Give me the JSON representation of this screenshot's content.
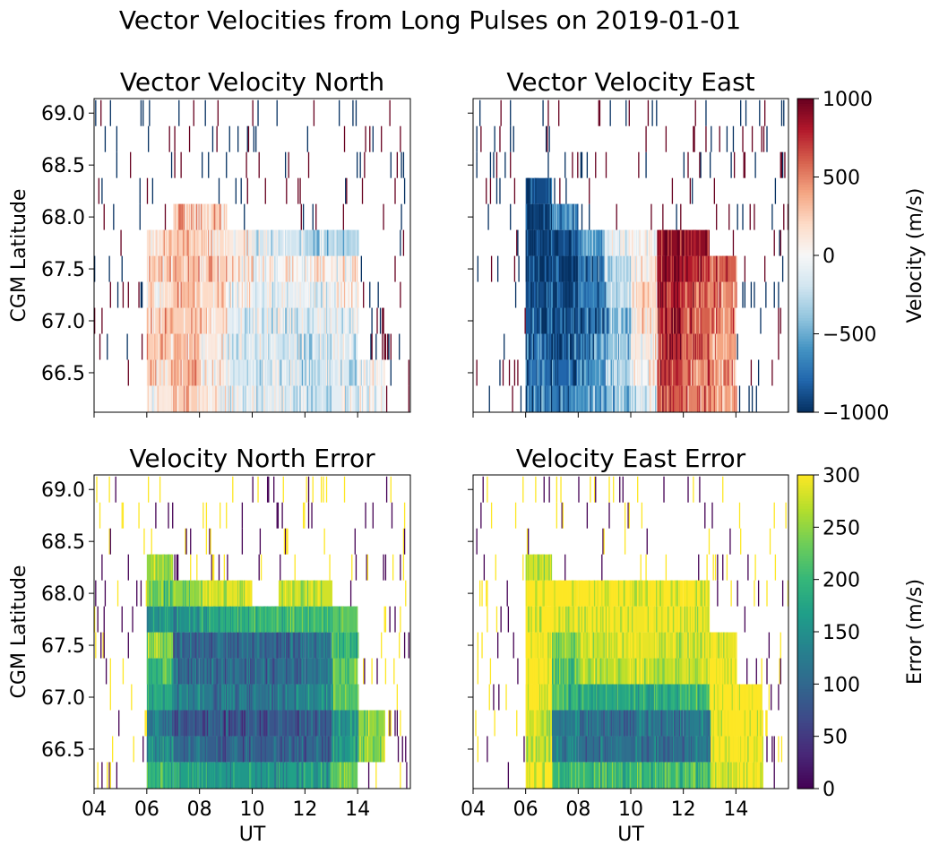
{
  "figure_title": "Vector Velocities from Long Pulses on 2019-01-01",
  "colorbars": {
    "velocity": {
      "label": "Velocity (m/s)",
      "colormap": "RdBu_r",
      "range": [
        -1000,
        1000
      ],
      "ticks": [
        1000,
        500,
        0,
        -500,
        -1000
      ],
      "tick_labels": [
        "1000",
        "500",
        "0",
        "−500",
        "−1000"
      ]
    },
    "error": {
      "label": "Error (m/s)",
      "colormap": "viridis",
      "range": [
        0,
        300
      ],
      "ticks": [
        300,
        250,
        200,
        150,
        100,
        50,
        0
      ],
      "tick_labels": [
        "300",
        "250",
        "200",
        "150",
        "100",
        "50",
        "0"
      ]
    }
  },
  "axes": {
    "ylabel": "CGM Latitude",
    "xlabel": "UT",
    "y_ticks": [
      69.0,
      68.5,
      68.0,
      67.5,
      67.0,
      66.5
    ],
    "y_tick_labels": [
      "69.0",
      "68.5",
      "68.0",
      "67.5",
      "67.0",
      "66.5"
    ],
    "x_ticks": [
      4,
      6,
      8,
      10,
      12,
      14
    ],
    "x_tick_labels": [
      "04",
      "06",
      "08",
      "10",
      "12",
      "14"
    ]
  },
  "chart_data": [
    {
      "type": "heatmap",
      "title": "Vector Velocity North",
      "xlabel": "",
      "ylabel": "CGM Latitude",
      "xlim": [
        4.0,
        16.0
      ],
      "ylim": [
        66.12,
        69.14
      ],
      "colormap": "RdBu_r",
      "clim": [
        -1000,
        1000
      ],
      "latitude_bands": [
        66.25,
        66.5,
        66.75,
        67.0,
        67.25,
        67.5,
        67.75,
        68.0,
        68.25,
        68.5,
        68.75,
        69.0
      ],
      "ut_hours": [
        4,
        5,
        6,
        7,
        8,
        9,
        10,
        11,
        12,
        13,
        14,
        15
      ],
      "values_by_band": [
        [
          null,
          null,
          100,
          250,
          100,
          -100,
          -150,
          -150,
          -200,
          -100,
          0,
          null
        ],
        [
          null,
          null,
          200,
          300,
          50,
          -150,
          -200,
          -200,
          -200,
          -150,
          0,
          null
        ],
        [
          null,
          null,
          250,
          300,
          100,
          -150,
          -150,
          -200,
          -200,
          -150,
          null,
          null
        ],
        [
          null,
          null,
          250,
          250,
          150,
          -100,
          -150,
          -150,
          -100,
          -100,
          null,
          null
        ],
        [
          null,
          null,
          200,
          300,
          200,
          0,
          -100,
          -100,
          -100,
          0,
          null,
          null
        ],
        [
          null,
          null,
          200,
          300,
          250,
          100,
          0,
          0,
          0,
          50,
          null,
          null
        ],
        [
          null,
          null,
          150,
          250,
          200,
          100,
          -200,
          -200,
          -300,
          -300,
          null,
          null
        ],
        [
          null,
          null,
          null,
          300,
          250,
          null,
          null,
          null,
          null,
          null,
          null,
          null
        ],
        [
          null,
          null,
          null,
          null,
          null,
          null,
          null,
          null,
          null,
          null,
          null,
          null
        ],
        [
          null,
          null,
          null,
          null,
          null,
          null,
          null,
          null,
          null,
          null,
          null,
          null
        ],
        [
          null,
          null,
          null,
          null,
          null,
          null,
          null,
          null,
          null,
          null,
          null,
          null
        ],
        [
          null,
          null,
          null,
          null,
          null,
          null,
          null,
          null,
          null,
          null,
          null,
          null
        ]
      ]
    },
    {
      "type": "heatmap",
      "title": "Vector Velocity East",
      "xlabel": "",
      "ylabel": "",
      "xlim": [
        4.0,
        16.0
      ],
      "ylim": [
        66.12,
        69.14
      ],
      "colormap": "RdBu_r",
      "clim": [
        -1000,
        1000
      ],
      "latitude_bands": [
        66.25,
        66.5,
        66.75,
        67.0,
        67.25,
        67.5,
        67.75,
        68.0,
        68.25,
        68.5,
        68.75,
        69.0
      ],
      "ut_hours": [
        4,
        5,
        6,
        7,
        8,
        9,
        10,
        11,
        12,
        13,
        14,
        15
      ],
      "values_by_band": [
        [
          null,
          null,
          -700,
          -700,
          -600,
          -400,
          -100,
          600,
          500,
          400,
          null,
          null
        ],
        [
          null,
          null,
          -750,
          -800,
          -600,
          -300,
          0,
          700,
          500,
          400,
          null,
          null
        ],
        [
          null,
          null,
          -800,
          -850,
          -650,
          -400,
          100,
          750,
          550,
          400,
          null,
          null
        ],
        [
          null,
          null,
          -850,
          -900,
          -700,
          -500,
          200,
          800,
          600,
          450,
          null,
          null
        ],
        [
          null,
          null,
          -900,
          -950,
          -700,
          -300,
          200,
          800,
          700,
          500,
          null,
          null
        ],
        [
          null,
          null,
          -900,
          -950,
          -700,
          -200,
          100,
          850,
          800,
          600,
          null,
          null
        ],
        [
          null,
          null,
          -950,
          -900,
          -600,
          -100,
          0,
          900,
          900,
          null,
          null,
          null
        ],
        [
          null,
          null,
          -950,
          -700,
          null,
          null,
          null,
          null,
          null,
          null,
          null,
          null
        ],
        [
          null,
          null,
          -900,
          null,
          null,
          null,
          null,
          null,
          null,
          null,
          null,
          null
        ],
        [
          null,
          null,
          null,
          null,
          null,
          null,
          null,
          null,
          null,
          null,
          null,
          null
        ],
        [
          null,
          null,
          null,
          null,
          null,
          null,
          null,
          null,
          null,
          null,
          null,
          null
        ],
        [
          null,
          null,
          null,
          null,
          null,
          null,
          null,
          null,
          null,
          null,
          null,
          null
        ]
      ]
    },
    {
      "type": "heatmap",
      "title": "Velocity North Error",
      "xlabel": "UT",
      "ylabel": "CGM Latitude",
      "xlim": [
        4.0,
        16.0
      ],
      "ylim": [
        66.12,
        69.14
      ],
      "colormap": "viridis",
      "clim": [
        0,
        300
      ],
      "latitude_bands": [
        66.25,
        66.5,
        66.75,
        67.0,
        67.25,
        67.5,
        67.75,
        68.0,
        68.25,
        68.5,
        68.75,
        69.0
      ],
      "ut_hours": [
        4,
        5,
        6,
        7,
        8,
        9,
        10,
        11,
        12,
        13,
        14,
        15
      ],
      "values_by_band": [
        [
          null,
          null,
          200,
          170,
          160,
          160,
          160,
          170,
          170,
          230,
          null,
          null
        ],
        [
          null,
          null,
          150,
          100,
          90,
          90,
          90,
          90,
          100,
          160,
          250,
          null
        ],
        [
          null,
          null,
          120,
          80,
          80,
          80,
          80,
          80,
          90,
          150,
          250,
          null
        ],
        [
          null,
          null,
          180,
          130,
          120,
          120,
          120,
          130,
          140,
          220,
          null,
          null
        ],
        [
          null,
          null,
          200,
          110,
          100,
          100,
          100,
          110,
          120,
          230,
          null,
          null
        ],
        [
          null,
          null,
          250,
          100,
          100,
          100,
          100,
          100,
          110,
          200,
          null,
          null
        ],
        [
          null,
          null,
          150,
          150,
          180,
          200,
          200,
          200,
          200,
          220,
          null,
          null
        ],
        [
          null,
          null,
          220,
          250,
          280,
          290,
          null,
          280,
          280,
          null,
          null,
          null
        ],
        [
          null,
          null,
          250,
          null,
          null,
          null,
          null,
          null,
          null,
          null,
          null,
          null
        ],
        [
          null,
          null,
          null,
          null,
          null,
          null,
          null,
          null,
          null,
          null,
          null,
          null
        ],
        [
          null,
          null,
          null,
          null,
          null,
          null,
          null,
          null,
          null,
          null,
          null,
          null
        ],
        [
          null,
          null,
          null,
          null,
          null,
          null,
          null,
          null,
          null,
          null,
          null,
          null
        ]
      ]
    },
    {
      "type": "heatmap",
      "title": "Velocity East Error",
      "xlabel": "UT",
      "ylabel": "",
      "xlim": [
        4.0,
        16.0
      ],
      "ylim": [
        66.12,
        69.14
      ],
      "colormap": "viridis",
      "clim": [
        0,
        300
      ],
      "latitude_bands": [
        66.25,
        66.5,
        66.75,
        67.0,
        67.25,
        67.5,
        67.75,
        68.0,
        68.25,
        68.5,
        68.75,
        69.0
      ],
      "ut_hours": [
        4,
        5,
        6,
        7,
        8,
        9,
        10,
        11,
        12,
        13,
        14,
        15
      ],
      "values_by_band": [
        [
          null,
          null,
          300,
          200,
          200,
          200,
          200,
          200,
          220,
          280,
          300,
          null
        ],
        [
          null,
          null,
          280,
          120,
          110,
          110,
          110,
          110,
          130,
          300,
          300,
          null
        ],
        [
          null,
          null,
          280,
          120,
          110,
          110,
          110,
          110,
          130,
          300,
          300,
          null
        ],
        [
          null,
          null,
          300,
          200,
          180,
          180,
          180,
          190,
          200,
          300,
          300,
          null
        ],
        [
          null,
          null,
          300,
          220,
          270,
          270,
          270,
          270,
          280,
          300,
          null,
          null
        ],
        [
          null,
          null,
          300,
          250,
          280,
          290,
          290,
          280,
          280,
          290,
          null,
          null
        ],
        [
          null,
          null,
          300,
          290,
          295,
          295,
          295,
          295,
          295,
          null,
          null,
          null
        ],
        [
          null,
          null,
          300,
          300,
          300,
          300,
          300,
          300,
          300,
          null,
          null,
          null
        ],
        [
          null,
          null,
          280,
          null,
          null,
          null,
          null,
          null,
          null,
          null,
          null,
          null
        ],
        [
          null,
          null,
          null,
          null,
          null,
          null,
          null,
          null,
          null,
          null,
          null,
          null
        ],
        [
          null,
          null,
          null,
          null,
          null,
          null,
          null,
          null,
          null,
          null,
          null,
          null
        ],
        [
          null,
          null,
          null,
          null,
          null,
          null,
          null,
          null,
          null,
          null,
          null,
          null
        ]
      ]
    }
  ]
}
